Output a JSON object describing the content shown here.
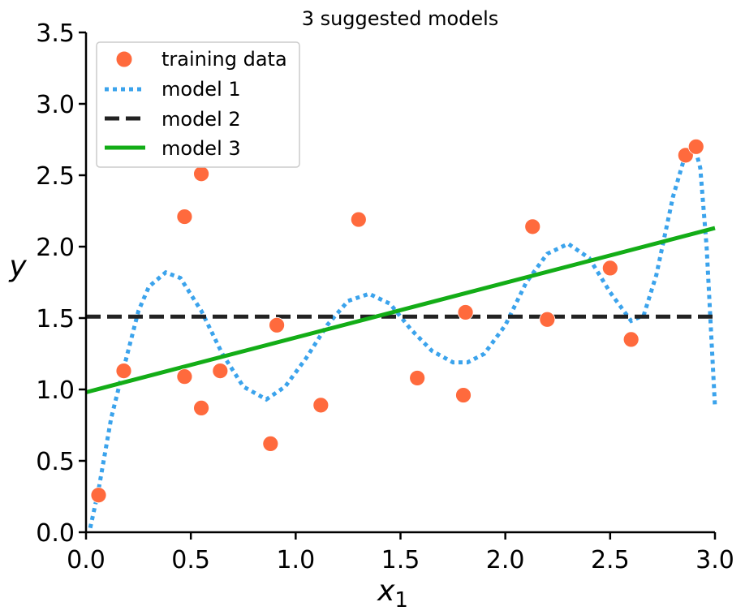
{
  "chart_data": {
    "type": "scatter",
    "title": "3 suggested models",
    "xlabel_main": "x",
    "xlabel_sub": "1",
    "ylabel": "y",
    "xlim": [
      0.0,
      3.0
    ],
    "ylim": [
      0.0,
      3.5
    ],
    "xticks": [
      0.0,
      0.5,
      1.0,
      1.5,
      2.0,
      2.5,
      3.0
    ],
    "xtick_labels": [
      "0.0",
      "0.5",
      "1.0",
      "1.5",
      "2.0",
      "2.5",
      "3.0"
    ],
    "yticks": [
      0.0,
      0.5,
      1.0,
      1.5,
      2.0,
      2.5,
      3.0,
      3.5
    ],
    "ytick_labels": [
      "0.0",
      "0.5",
      "1.0",
      "1.5",
      "2.0",
      "2.5",
      "3.0",
      "3.5"
    ],
    "legend_position": "top-left",
    "series": [
      {
        "name": "training data",
        "kind": "scatter",
        "color": "#FF6A3D",
        "x": [
          0.06,
          0.18,
          0.47,
          0.47,
          0.55,
          0.55,
          0.64,
          0.88,
          0.91,
          1.12,
          1.3,
          1.58,
          1.8,
          1.81,
          2.13,
          2.2,
          2.5,
          2.6,
          2.86,
          2.91
        ],
        "y": [
          0.26,
          1.13,
          2.21,
          1.09,
          0.87,
          2.51,
          1.13,
          0.62,
          1.45,
          0.89,
          2.19,
          1.08,
          0.96,
          1.54,
          2.14,
          1.49,
          1.85,
          1.35,
          2.64,
          2.7
        ]
      },
      {
        "name": "model 1",
        "kind": "line",
        "style": "dotted",
        "color": "#3BA3EC",
        "x": [
          0.02,
          0.06,
          0.12,
          0.18,
          0.25,
          0.3,
          0.38,
          0.45,
          0.55,
          0.65,
          0.75,
          0.86,
          0.95,
          1.05,
          1.15,
          1.25,
          1.35,
          1.45,
          1.55,
          1.65,
          1.75,
          1.82,
          1.9,
          2.0,
          2.1,
          2.2,
          2.3,
          2.4,
          2.5,
          2.6,
          2.66,
          2.72,
          2.8,
          2.86,
          2.9,
          2.93,
          2.96,
          3.0
        ],
        "y": [
          0.03,
          0.3,
          0.8,
          1.15,
          1.55,
          1.72,
          1.82,
          1.78,
          1.55,
          1.25,
          1.02,
          0.93,
          1.02,
          1.22,
          1.45,
          1.62,
          1.67,
          1.6,
          1.42,
          1.27,
          1.19,
          1.19,
          1.25,
          1.45,
          1.75,
          1.95,
          2.02,
          1.92,
          1.68,
          1.48,
          1.52,
          1.8,
          2.35,
          2.65,
          2.72,
          2.55,
          2.0,
          0.88
        ]
      },
      {
        "name": "model 2",
        "kind": "line",
        "style": "dashed",
        "color": "#222222",
        "x": [
          0.0,
          3.0
        ],
        "y": [
          1.51,
          1.51
        ]
      },
      {
        "name": "model 3",
        "kind": "line",
        "style": "solid",
        "color": "#13AD17",
        "x": [
          0.0,
          3.0
        ],
        "y": [
          0.98,
          2.13
        ]
      }
    ]
  }
}
